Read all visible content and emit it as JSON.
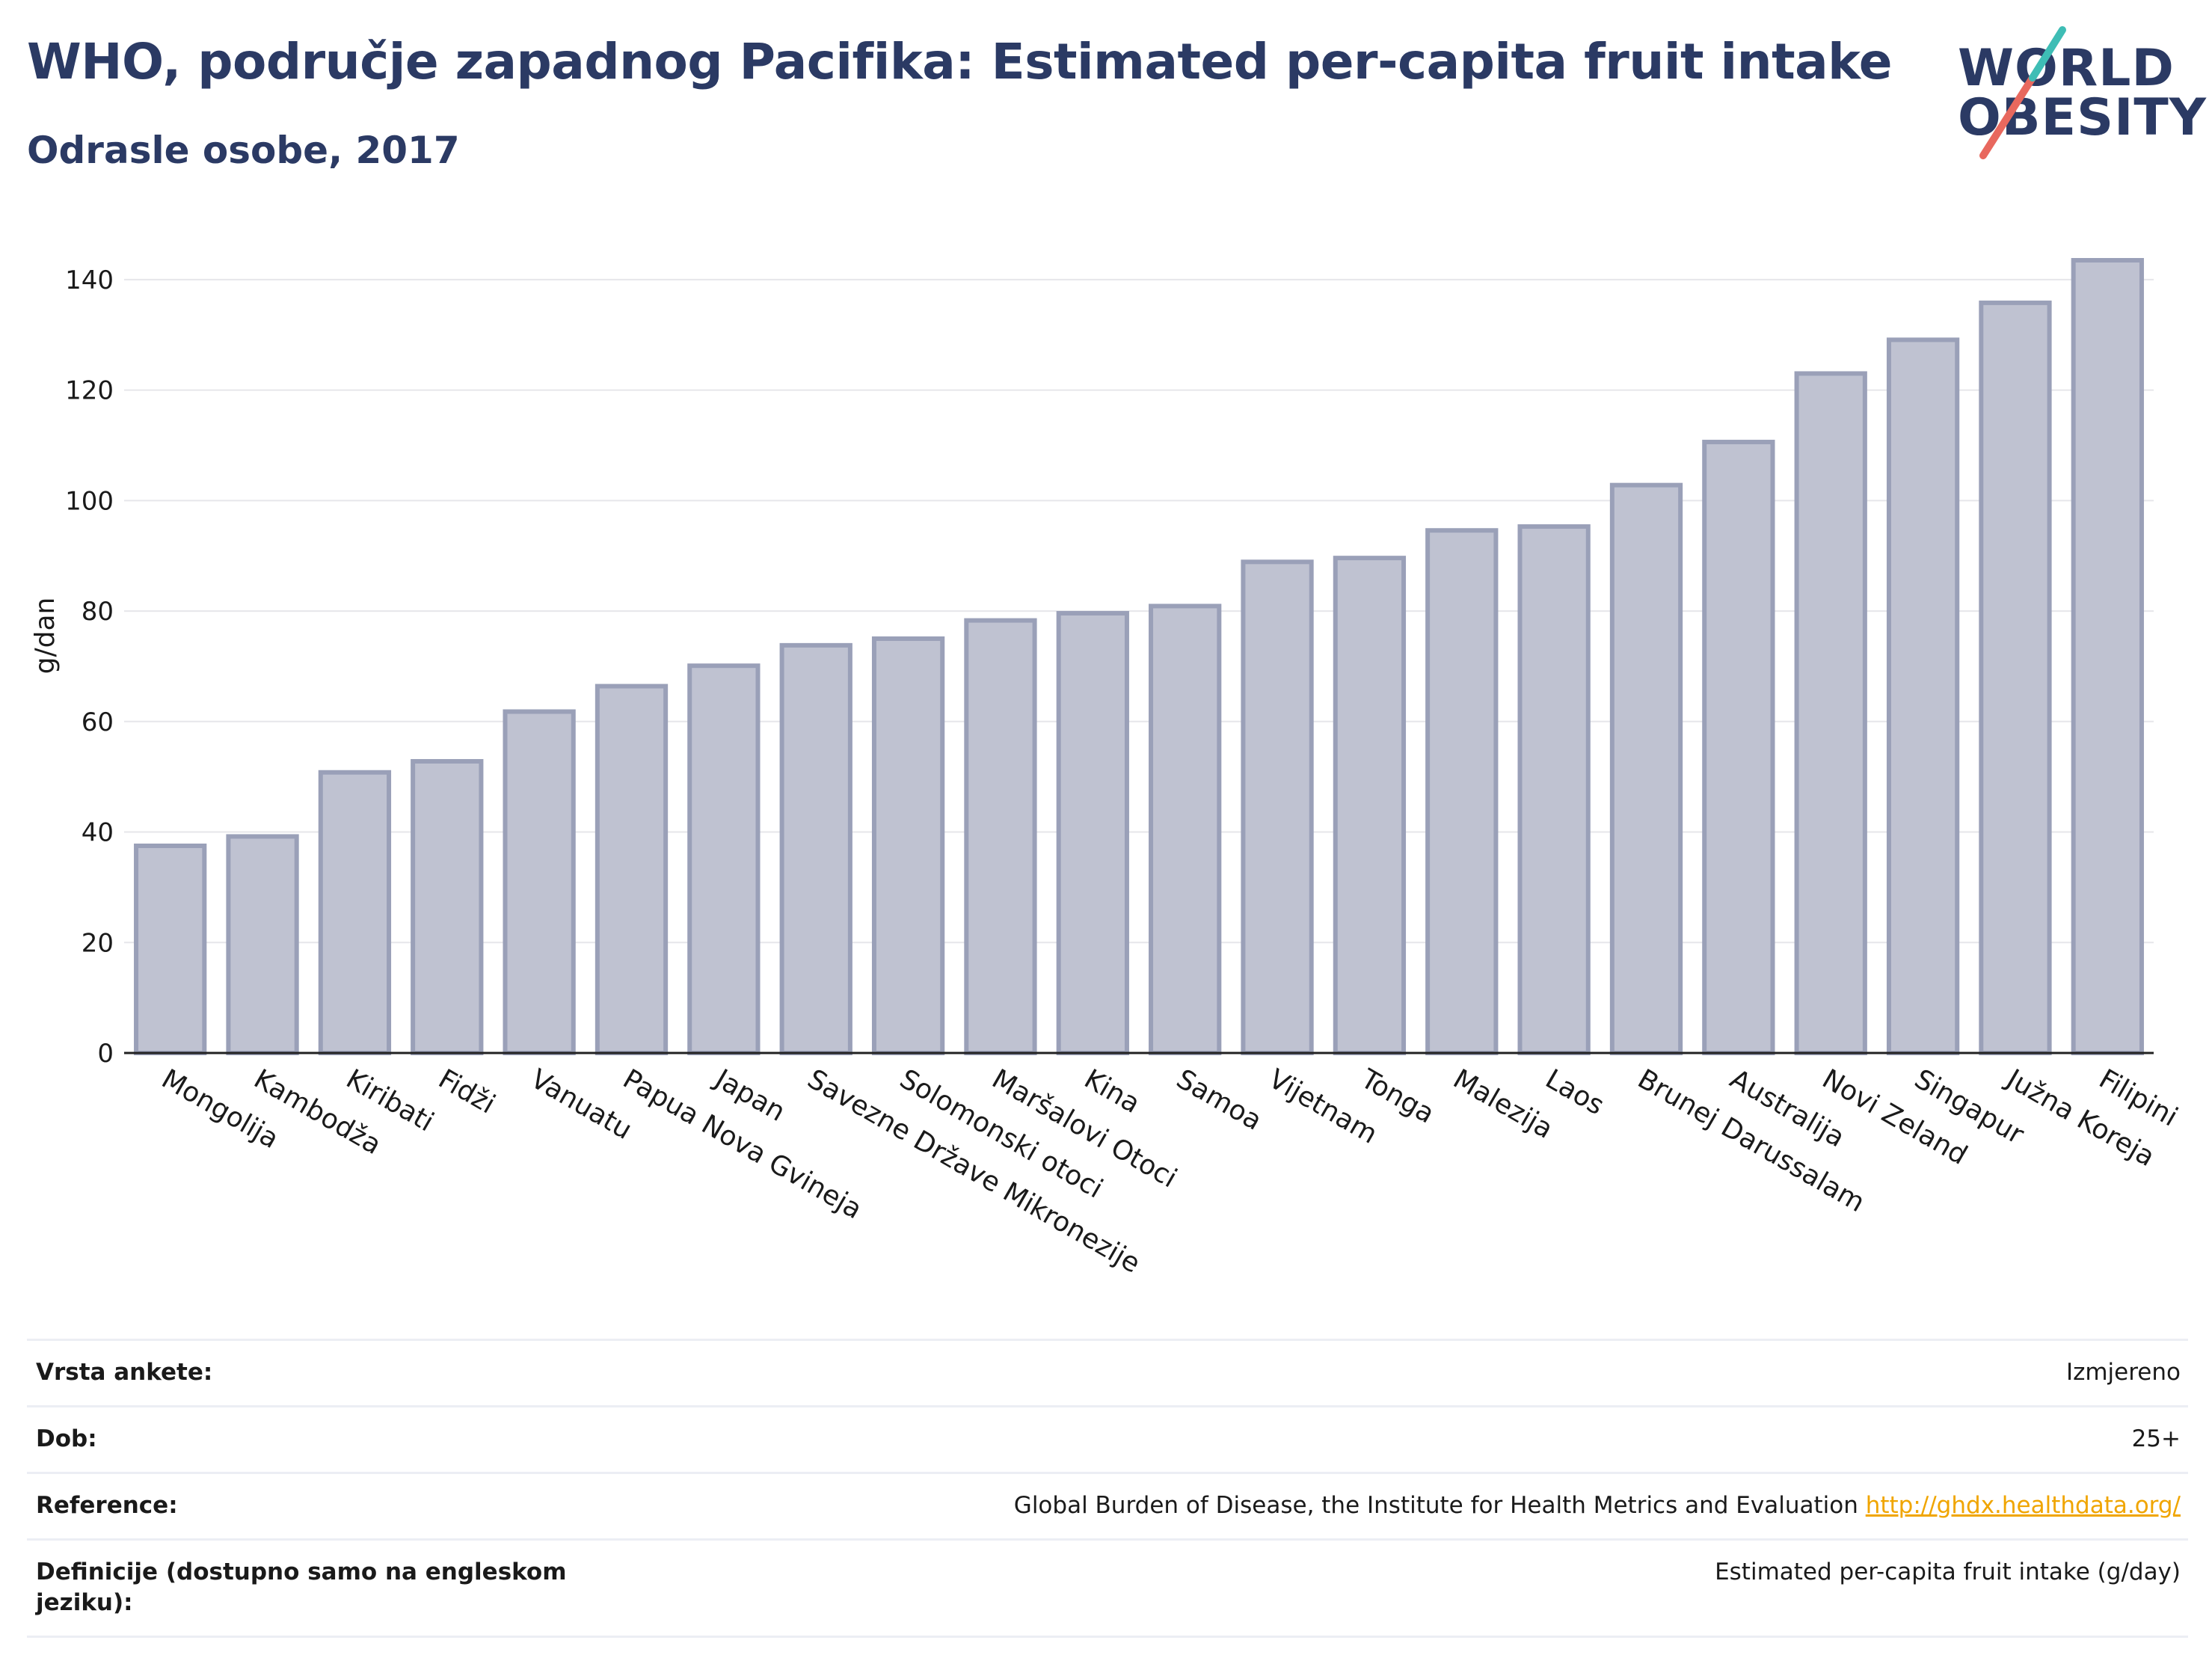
{
  "header": {
    "title": "WHO, područje zapadnog Pacifika: Estimated per-capita fruit intake",
    "subtitle": "Odrasle osobe, 2017"
  },
  "logo": {
    "line1": "WORLD",
    "line2": "OBESITY",
    "slash_colors": [
      "#e8685e",
      "#3ebdb5"
    ]
  },
  "colors": {
    "bar_fill": "#bfc2d1",
    "bar_stroke": "#9aa0b8",
    "title": "#2b3a64",
    "link": "#f0a500",
    "grid": "#e6e6ea"
  },
  "chart_data": {
    "type": "bar",
    "title": "WHO, područje zapadnog Pacifika: Estimated per-capita fruit intake",
    "subtitle": "Odrasle osobe, 2017",
    "xlabel": "",
    "ylabel": "g/dan",
    "ylim": [
      0,
      150
    ],
    "yticks": [
      0,
      20,
      40,
      60,
      80,
      100,
      120,
      140
    ],
    "grid": true,
    "categories": [
      "Mongolija",
      "Kambodža",
      "Kiribati",
      "Fidži",
      "Vanuatu",
      "Papua Nova Gvineja",
      "Japan",
      "Savezne Države Mikronezije",
      "Solomonski otoci",
      "Maršalovi Otoci",
      "Kina",
      "Samoa",
      "Vijetnam",
      "Tonga",
      "Malezija",
      "Laos",
      "Brunej Darussalam",
      "Australija",
      "Novi Zeland",
      "Singapur",
      "Južna Koreja",
      "Filipini"
    ],
    "values": [
      37.5,
      39.2,
      50.8,
      52.8,
      61.8,
      66.4,
      70.1,
      73.8,
      75.0,
      78.3,
      79.6,
      80.9,
      88.9,
      89.6,
      94.6,
      95.3,
      102.8,
      110.6,
      123.0,
      129.1,
      135.8,
      143.5
    ]
  },
  "meta": {
    "rows": [
      {
        "label": "Vrsta ankete:",
        "value": "Izmjereno"
      },
      {
        "label": "Dob:",
        "value": "25+"
      },
      {
        "label": "Reference:",
        "value": "Global Burden of Disease, the Institute for Health Metrics and Evaluation",
        "link": "http://ghdx.healthdata.org/"
      },
      {
        "label": "Definicije (dostupno samo na engleskom jeziku):",
        "value": "Estimated per-capita fruit intake (g/day)"
      }
    ]
  }
}
